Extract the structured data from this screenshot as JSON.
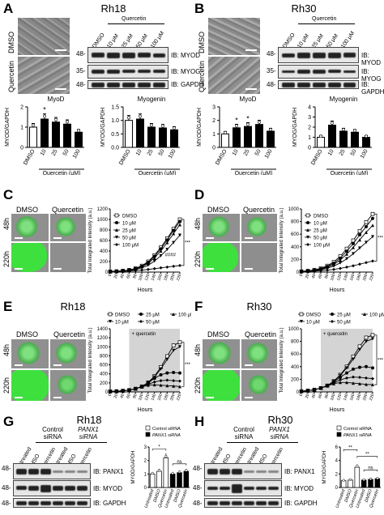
{
  "figure": {
    "panels": {
      "A": {
        "letter": "A",
        "title": "Rh18"
      },
      "B": {
        "letter": "B",
        "title": "Rh30"
      },
      "C": {
        "letter": "C",
        "title": "Rh18"
      },
      "D": {
        "letter": "D",
        "title": "Rh30"
      },
      "E": {
        "letter": "E",
        "title": "Rh18"
      },
      "F": {
        "letter": "F",
        "title": "Rh30"
      },
      "G": {
        "letter": "G",
        "title": "Rh18"
      },
      "H": {
        "letter": "H",
        "title": "Rh30"
      }
    },
    "micro_labels": {
      "dmso": "DMSO",
      "quercetin": "Quercetin",
      "h48": "48h",
      "h220": "220h"
    },
    "blot_ab": {
      "header": "Quercetin",
      "lanes": [
        "DMSO",
        "10 μM",
        "25 μM",
        "50 μM",
        "100 μM"
      ],
      "markers": [
        "48-",
        "35-",
        "48-"
      ],
      "ib": [
        "IB: MYOD",
        "IB: MYOG",
        "IB: GAPDH"
      ]
    },
    "blot_gh": {
      "header_ctrl": "Control siRNA",
      "header_panx": "PANX1 siRNA",
      "lanes": [
        "Untreated",
        "DMSO",
        "Quercetin",
        "Untreated",
        "DMSO",
        "Quercetin"
      ],
      "markers": [
        "48-",
        "48-",
        "48-"
      ],
      "ib": [
        "IB: PANX1",
        "IB: MYOD",
        "IB: GAPDH"
      ]
    },
    "growth_legend_cd": [
      "DMSO",
      "10 μM",
      "25 μM",
      "50 μM",
      "100 μM"
    ],
    "growth_legend_ef": [
      "DMSO",
      "25 μM",
      "100 μM",
      "10 μM",
      "50 μM"
    ],
    "quercetin_annot": "+ quercetin",
    "sig": {
      "star3": "***",
      "hash4": "####",
      "star1": "*",
      "star2": "**",
      "ns": "ns"
    },
    "siRNA_legend": [
      "Control siRNA",
      "PANX1 siRNA"
    ]
  },
  "chart_data": [
    {
      "id": "A-myod",
      "type": "bar",
      "title": "MyoD",
      "xlabel": "Quercetin (μM)",
      "ylabel": "MYOD/GAPDH",
      "categories": [
        "DMSO",
        "10",
        "25",
        "50",
        "100"
      ],
      "values": [
        1.0,
        1.4,
        1.25,
        1.15,
        0.75
      ],
      "ylim": [
        0,
        2
      ],
      "yticks": [
        "0",
        "1",
        "2"
      ]
    },
    {
      "id": "A-myog",
      "type": "bar",
      "title": "Myogenin",
      "xlabel": "Quercetin (μM)",
      "ylabel": "MYOG/GAPDH",
      "categories": [
        "DMSO",
        "10",
        "25",
        "50",
        "100"
      ],
      "values": [
        1.0,
        1.05,
        0.75,
        0.72,
        0.65
      ],
      "ylim": [
        0,
        1.5
      ],
      "yticks": [
        "0.0",
        "0.5",
        "1.0",
        "1.5"
      ]
    },
    {
      "id": "B-myod",
      "type": "bar",
      "title": "MyoD",
      "xlabel": "Quercetin (μM)",
      "ylabel": "MYOD/GAPDH",
      "categories": [
        "DMSO",
        "10",
        "25",
        "50",
        "100"
      ],
      "values": [
        1.0,
        1.45,
        1.55,
        1.7,
        1.2
      ],
      "ylim": [
        0,
        3
      ],
      "yticks": [
        "0",
        "1",
        "2",
        "3"
      ]
    },
    {
      "id": "B-myog",
      "type": "bar",
      "title": "Myogenin",
      "xlabel": "Quercetin (μM)",
      "ylabel": "MYOG/GAPDH",
      "categories": [
        "DMSO",
        "10",
        "25",
        "50",
        "100"
      ],
      "values": [
        1.0,
        2.2,
        1.6,
        1.5,
        1.0
      ],
      "ylim": [
        0,
        4
      ],
      "yticks": [
        "0",
        "1",
        "2",
        "3",
        "4"
      ]
    },
    {
      "id": "C-growth",
      "type": "line",
      "xlabel": "Hours",
      "ylabel": "Total Integrated Intensity (a.u.)",
      "x": [
        0,
        20,
        40,
        60,
        80,
        100,
        120,
        140,
        160,
        180,
        200,
        220
      ],
      "ylim": [
        0,
        1200
      ],
      "yticks": [
        "0",
        "200",
        "400",
        "600",
        "800",
        "1000",
        "1200"
      ],
      "series": [
        {
          "name": "DMSO",
          "values": [
            10,
            15,
            25,
            40,
            70,
            120,
            200,
            320,
            470,
            640,
            820,
            1000
          ]
        },
        {
          "name": "10 μM",
          "values": [
            10,
            15,
            24,
            38,
            65,
            110,
            185,
            300,
            440,
            610,
            790,
            960
          ]
        },
        {
          "name": "25 μM",
          "values": [
            10,
            14,
            22,
            35,
            60,
            100,
            165,
            270,
            400,
            560,
            730,
            900
          ]
        },
        {
          "name": "50 μM",
          "values": [
            10,
            14,
            20,
            30,
            50,
            80,
            130,
            210,
            310,
            430,
            560,
            700
          ]
        },
        {
          "name": "100 μM",
          "values": [
            10,
            12,
            15,
            20,
            28,
            38,
            50,
            65,
            80,
            95,
            110,
            125
          ]
        }
      ]
    },
    {
      "id": "D-growth",
      "type": "line",
      "xlabel": "Hours",
      "ylabel": "Total Integrated Intensity (a.u.)",
      "x": [
        0,
        20,
        40,
        60,
        80,
        100,
        120,
        140,
        160,
        180,
        200,
        220
      ],
      "ylim": [
        0,
        1000
      ],
      "yticks": [
        "0",
        "200",
        "400",
        "600",
        "800",
        "1000"
      ],
      "series": [
        {
          "name": "DMSO",
          "values": [
            10,
            20,
            35,
            60,
            100,
            160,
            250,
            370,
            500,
            650,
            790,
            920
          ]
        },
        {
          "name": "10 μM",
          "values": [
            10,
            18,
            30,
            52,
            88,
            140,
            220,
            330,
            450,
            590,
            720,
            850
          ]
        },
        {
          "name": "25 μM",
          "values": [
            10,
            16,
            27,
            45,
            75,
            120,
            190,
            285,
            390,
            510,
            630,
            740
          ]
        },
        {
          "name": "50 μM",
          "values": [
            10,
            15,
            24,
            38,
            60,
            95,
            145,
            210,
            290,
            380,
            470,
            560
          ]
        },
        {
          "name": "100 μM",
          "values": [
            10,
            12,
            16,
            22,
            30,
            42,
            58,
            78,
            100,
            125,
            150,
            175
          ]
        }
      ]
    },
    {
      "id": "E-growth",
      "type": "line",
      "xlabel": "Hours",
      "ylabel": "Total Integrated Intensity (a.u.)",
      "x": [
        0,
        20,
        40,
        60,
        80,
        100,
        120,
        140,
        160,
        180,
        200,
        220
      ],
      "ylim": [
        0,
        1400
      ],
      "yticks": [
        "0",
        "200",
        "400",
        "600",
        "800",
        "1000",
        "1200",
        "1400"
      ],
      "shaded_from": 60,
      "series": [
        {
          "name": "DMSO",
          "values": [
            10,
            15,
            25,
            40,
            70,
            120,
            210,
            350,
            550,
            790,
            1030,
            1100
          ]
        },
        {
          "name": "25 μM",
          "values": [
            10,
            15,
            25,
            40,
            70,
            120,
            200,
            300,
            380,
            420,
            430,
            420
          ]
        },
        {
          "name": "100 μM",
          "values": [
            10,
            15,
            25,
            40,
            70,
            110,
            150,
            160,
            150,
            140,
            130,
            120
          ]
        },
        {
          "name": "10 μM",
          "values": [
            10,
            15,
            25,
            40,
            70,
            120,
            205,
            330,
            510,
            720,
            920,
            1000
          ]
        },
        {
          "name": "50 μM",
          "values": [
            10,
            15,
            25,
            40,
            70,
            115,
            170,
            220,
            250,
            260,
            250,
            240
          ]
        }
      ]
    },
    {
      "id": "F-growth",
      "type": "line",
      "xlabel": "Hours",
      "ylabel": "Total Integrated Intensity (a.u.)",
      "x": [
        0,
        20,
        40,
        60,
        80,
        100,
        120,
        140,
        160,
        180,
        200,
        220
      ],
      "ylim": [
        0,
        1000
      ],
      "yticks": [
        "0",
        "200",
        "400",
        "600",
        "800",
        "1000"
      ],
      "shaded_from": 60,
      "series": [
        {
          "name": "DMSO",
          "values": [
            10,
            20,
            35,
            60,
            100,
            170,
            270,
            400,
            560,
            720,
            860,
            900
          ]
        },
        {
          "name": "25 μM",
          "values": [
            10,
            20,
            35,
            60,
            100,
            160,
            230,
            300,
            360,
            390,
            400,
            380
          ]
        },
        {
          "name": "100 μM",
          "values": [
            10,
            20,
            35,
            60,
            95,
            130,
            150,
            150,
            140,
            130,
            120,
            115
          ]
        },
        {
          "name": "10 μM",
          "values": [
            10,
            20,
            35,
            60,
            100,
            165,
            260,
            380,
            520,
            670,
            800,
            840
          ]
        },
        {
          "name": "50 μM",
          "values": [
            10,
            20,
            35,
            60,
            98,
            145,
            190,
            220,
            235,
            230,
            220,
            210
          ]
        }
      ]
    },
    {
      "id": "G-bar",
      "type": "bar",
      "ylabel": "MYOD/GAPDH",
      "categories": [
        "Untreated",
        "DMSO",
        "Quercetin"
      ],
      "series": [
        {
          "name": "Control siRNA",
          "values": [
            1.0,
            1.2,
            2.2
          ]
        },
        {
          "name": "PANX1 siRNA",
          "values": [
            1.0,
            1.1,
            1.2
          ]
        }
      ],
      "ylim": [
        0,
        3
      ],
      "yticks": [
        "0",
        "1",
        "2",
        "3"
      ]
    },
    {
      "id": "H-bar",
      "type": "bar",
      "ylabel": "MYOD/GAPDH",
      "categories": [
        "Untreated",
        "DMSO",
        "Quercetin"
      ],
      "series": [
        {
          "name": "Control siRNA",
          "values": [
            1.0,
            1.1,
            3.0
          ]
        },
        {
          "name": "PANX1 siRNA",
          "values": [
            1.1,
            1.2,
            1.3
          ]
        }
      ],
      "ylim": [
        0,
        6
      ],
      "yticks": [
        "0",
        "2",
        "4",
        "6"
      ]
    }
  ]
}
